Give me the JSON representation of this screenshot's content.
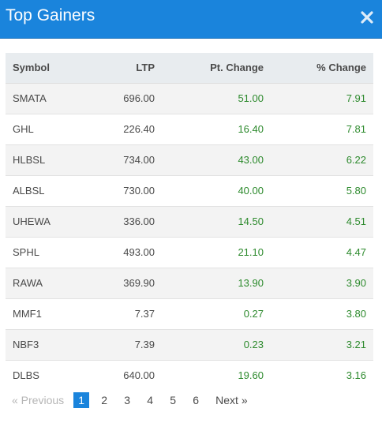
{
  "modal": {
    "title": "Top Gainers",
    "accent_color": "#1a84dc",
    "close_icon": "close-icon"
  },
  "table": {
    "headers": [
      "Symbol",
      "LTP",
      "Pt. Change",
      "% Change"
    ],
    "rows": [
      {
        "symbol": "SMATA",
        "ltp": "696.00",
        "pt_change": "51.00",
        "pct_change": "7.91"
      },
      {
        "symbol": "GHL",
        "ltp": "226.40",
        "pt_change": "16.40",
        "pct_change": "7.81"
      },
      {
        "symbol": "HLBSL",
        "ltp": "734.00",
        "pt_change": "43.00",
        "pct_change": "6.22"
      },
      {
        "symbol": "ALBSL",
        "ltp": "730.00",
        "pt_change": "40.00",
        "pct_change": "5.80"
      },
      {
        "symbol": "UHEWA",
        "ltp": "336.00",
        "pt_change": "14.50",
        "pct_change": "4.51"
      },
      {
        "symbol": "SPHL",
        "ltp": "493.00",
        "pt_change": "21.10",
        "pct_change": "4.47"
      },
      {
        "symbol": "RAWA",
        "ltp": "369.90",
        "pt_change": "13.90",
        "pct_change": "3.90"
      },
      {
        "symbol": "MMF1",
        "ltp": "7.37",
        "pt_change": "0.27",
        "pct_change": "3.80"
      },
      {
        "symbol": "NBF3",
        "ltp": "7.39",
        "pt_change": "0.23",
        "pct_change": "3.21"
      },
      {
        "symbol": "DLBS",
        "ltp": "640.00",
        "pt_change": "19.60",
        "pct_change": "3.16"
      }
    ],
    "positive_color": "#2d8a2d"
  },
  "pagination": {
    "previous_label": "« Previous",
    "pages": [
      "1",
      "2",
      "3",
      "4",
      "5",
      "6"
    ],
    "current_page": "1",
    "next_label": "Next »"
  }
}
